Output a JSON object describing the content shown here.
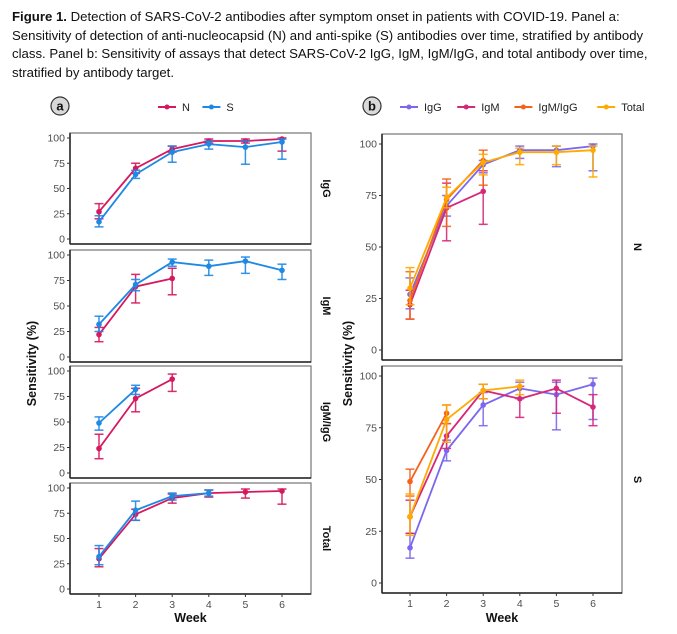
{
  "caption": {
    "label": "Figure 1.",
    "text": " Detection of SARS-CoV-2 antibodies after symptom onset in patients with COVID-19. Panel a: Sensitivity of detection of anti-nucleocapsid (N) and anti-spike (S) antibodies over time, stratified by antibody class. Panel b: Sensitivity of assays that detect SARS-CoV-2 IgG, IgM, IgM/IgG, and total antibody over time, stratified by antibody target."
  },
  "chart_data": [
    {
      "panel": "a",
      "type": "line",
      "xlabel": "Week",
      "ylabel": "Sensitivity (%)",
      "x": [
        1,
        2,
        3,
        4,
        5,
        6
      ],
      "x_ticks": [
        "1",
        "2",
        "3",
        "4",
        "5",
        "6"
      ],
      "y_ticks": [
        "0",
        "25",
        "50",
        "75",
        "100"
      ],
      "ylim": [
        0,
        100
      ],
      "legend": [
        {
          "name": "N",
          "color": "#D6185E"
        },
        {
          "name": "S",
          "color": "#1E88E5"
        }
      ],
      "legend_position": "top",
      "facets": [
        {
          "label": "IgG",
          "series": [
            {
              "name": "N",
              "values": [
                27,
                70,
                89,
                97,
                97,
                99
              ],
              "lower": [
                20,
                65,
                86,
                95,
                95,
                87
              ],
              "upper": [
                35,
                75,
                92,
                99,
                99,
                100
              ]
            },
            {
              "name": "S",
              "values": [
                17,
                64,
                86,
                94,
                91,
                96
              ],
              "lower": [
                12,
                60,
                76,
                89,
                74,
                79
              ],
              "upper": [
                23,
                68,
                92,
                97,
                97,
                99
              ]
            }
          ]
        },
        {
          "label": "IgM",
          "series": [
            {
              "name": "N",
              "values": [
                22,
                69,
                77,
                null,
                null,
                null
              ],
              "lower": [
                15,
                53,
                61,
                null,
                null,
                null
              ],
              "upper": [
                29,
                81,
                87,
                null,
                null,
                null
              ]
            },
            {
              "name": "S",
              "values": [
                32,
                71,
                93,
                89,
                94,
                85
              ],
              "lower": [
                25,
                65,
                89,
                80,
                82,
                76
              ],
              "upper": [
                40,
                76,
                96,
                95,
                98,
                91
              ]
            }
          ]
        },
        {
          "label": "IgM/IgG",
          "series": [
            {
              "name": "N",
              "values": [
                24,
                73,
                92,
                null,
                null,
                null
              ],
              "lower": [
                14,
                60,
                80,
                null,
                null,
                null
              ],
              "upper": [
                38,
                83,
                97,
                null,
                null,
                null
              ]
            },
            {
              "name": "S",
              "values": [
                49,
                82,
                null,
                null,
                null,
                null
              ],
              "lower": [
                42,
                77,
                null,
                null,
                null,
                null
              ],
              "upper": [
                55,
                86,
                null,
                null,
                null,
                null
              ]
            }
          ]
        },
        {
          "label": "Total",
          "series": [
            {
              "name": "N",
              "values": [
                30,
                74,
                90,
                95,
                96,
                97
              ],
              "lower": [
                22,
                68,
                85,
                91,
                90,
                84
              ],
              "upper": [
                40,
                79,
                94,
                98,
                99,
                99
              ]
            },
            {
              "name": "S",
              "values": [
                32,
                78,
                92,
                95,
                null,
                null
              ],
              "lower": [
                24,
                68,
                88,
                92,
                null,
                null
              ],
              "upper": [
                43,
                87,
                95,
                98,
                null,
                null
              ]
            }
          ]
        }
      ]
    },
    {
      "panel": "b",
      "type": "line",
      "xlabel": "Week",
      "ylabel": "Sensitivity (%)",
      "x": [
        1,
        2,
        3,
        4,
        5,
        6
      ],
      "x_ticks": [
        "1",
        "2",
        "3",
        "4",
        "5",
        "6"
      ],
      "y_ticks": [
        "0",
        "25",
        "50",
        "75",
        "100"
      ],
      "ylim": [
        0,
        100
      ],
      "legend": [
        {
          "name": "IgG",
          "color": "#7B68EE"
        },
        {
          "name": "IgM",
          "color": "#D6287A"
        },
        {
          "name": "IgM/IgG",
          "color": "#F4631E"
        },
        {
          "name": "Total",
          "color": "#FFAA00"
        }
      ],
      "legend_position": "top",
      "facets": [
        {
          "label": "N",
          "series": [
            {
              "name": "IgG",
              "values": [
                27,
                70,
                90,
                97,
                97,
                99
              ],
              "lower": [
                20,
                65,
                86,
                93,
                89,
                87
              ],
              "upper": [
                35,
                75,
                92,
                99,
                99,
                100
              ]
            },
            {
              "name": "IgM",
              "values": [
                22,
                69,
                77,
                null,
                null,
                null
              ],
              "lower": [
                15,
                53,
                61,
                null,
                null,
                null
              ],
              "upper": [
                29,
                81,
                87,
                null,
                null,
                null
              ]
            },
            {
              "name": "IgM/IgG",
              "values": [
                24,
                73,
                92,
                null,
                null,
                null
              ],
              "lower": [
                15,
                60,
                80,
                null,
                null,
                null
              ],
              "upper": [
                38,
                83,
                97,
                null,
                null,
                null
              ]
            },
            {
              "name": "Total",
              "values": [
                30,
                74,
                91,
                96,
                96,
                97
              ],
              "lower": [
                22,
                69,
                85,
                90,
                90,
                84
              ],
              "upper": [
                40,
                79,
                95,
                98,
                99,
                99
              ]
            }
          ]
        },
        {
          "label": "S",
          "series": [
            {
              "name": "IgG",
              "values": [
                17,
                64,
                86,
                94,
                91,
                96
              ],
              "lower": [
                12,
                59,
                76,
                89,
                74,
                79
              ],
              "upper": [
                24,
                69,
                92,
                97,
                97,
                99
              ]
            },
            {
              "name": "IgM",
              "values": [
                32,
                71,
                93,
                89,
                94,
                85
              ],
              "lower": [
                24,
                65,
                89,
                80,
                82,
                76
              ],
              "upper": [
                40,
                77,
                96,
                95,
                98,
                91
              ]
            },
            {
              "name": "IgM/IgG",
              "values": [
                49,
                82,
                null,
                null,
                null,
                null
              ],
              "lower": [
                42,
                77,
                null,
                null,
                null,
                null
              ],
              "upper": [
                55,
                86,
                null,
                null,
                null,
                null
              ]
            },
            {
              "name": "Total",
              "values": [
                32,
                79,
                93,
                95,
                null,
                null
              ],
              "lower": [
                23,
                68,
                89,
                91,
                null,
                null
              ],
              "upper": [
                43,
                86,
                96,
                98,
                null,
                null
              ]
            }
          ]
        }
      ]
    }
  ]
}
